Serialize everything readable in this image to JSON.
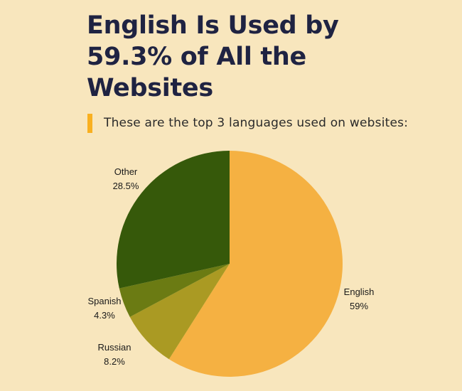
{
  "title": "English Is Used by 59.3% of All the Websites",
  "subtitle": "These are the top 3 languages used on websites:",
  "colors": {
    "background": "#f8e6bd",
    "title": "#1f2342",
    "accent_bar": "#f9b020"
  },
  "chart_data": {
    "type": "pie",
    "start": "top",
    "direction": "clockwise",
    "slices": [
      {
        "label": "English",
        "value": 59,
        "value_label": "59%",
        "color": "#f5b142"
      },
      {
        "label": "Russian",
        "value": 8.2,
        "value_label": "8.2%",
        "color": "#aa9a23"
      },
      {
        "label": "Spanish",
        "value": 4.3,
        "value_label": "4.3%",
        "color": "#6b7b13"
      },
      {
        "label": "Other",
        "value": 28.5,
        "value_label": "28.5%",
        "color": "#36590a"
      }
    ]
  }
}
